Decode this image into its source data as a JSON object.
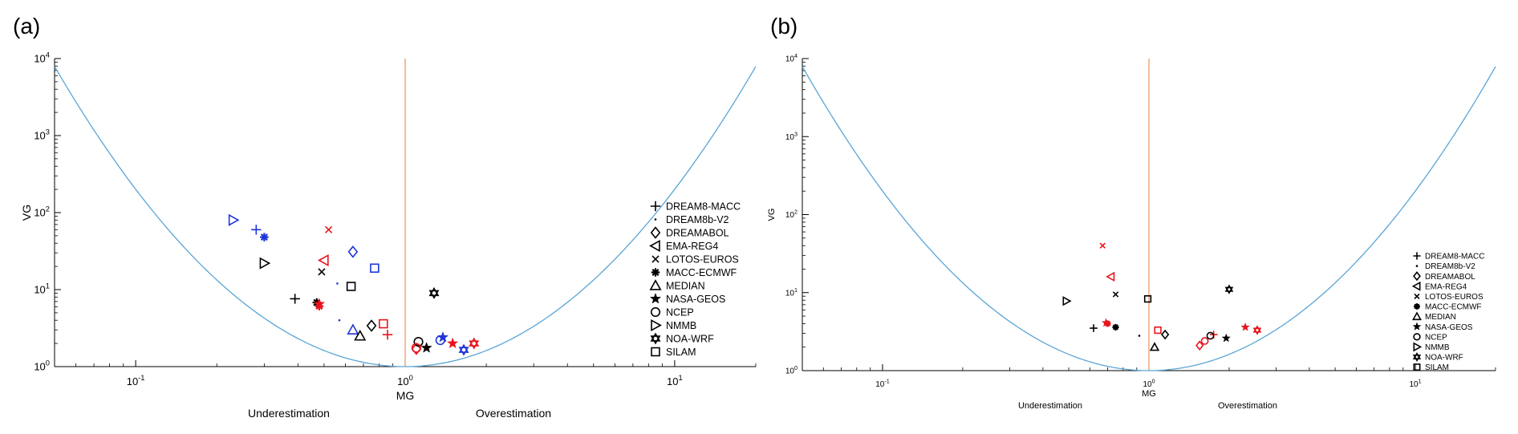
{
  "chart_data": [
    {
      "panel": "(a)",
      "type": "scatter",
      "xlabel": "MG",
      "ylabel": "VG",
      "xscale": "log",
      "yscale": "log",
      "xlim": [
        0.05,
        20
      ],
      "ylim": [
        1,
        10000
      ],
      "x_ticks": [
        "10^-1",
        "10^0",
        "10^1"
      ],
      "y_ticks": [
        "10^0",
        "10^1",
        "10^2",
        "10^3",
        "10^4"
      ],
      "region_labels": [
        "Underestimation",
        "Overestimation"
      ],
      "reference_line_x": 1,
      "curve": "VG = exp((ln MG)^2)",
      "legend_position": "right",
      "legend": [
        "DREAM8-MACC",
        "DREAM8b-V2",
        "DREAMABOL",
        "EMA-REG4",
        "LOTOS-EUROS",
        "MACC-ECMWF",
        "MEDIAN",
        "NASA-GEOS",
        "NCEP",
        "NMMB",
        "NOA-WRF",
        "SILAM"
      ],
      "series_colors": {
        "black": "#000000",
        "red": "#e8141c",
        "blue": "#1f35d6"
      },
      "points": [
        {
          "model": "DREAM8-MACC",
          "color": "blue",
          "x": 0.28,
          "y": 60
        },
        {
          "model": "DREAM8-MACC",
          "color": "black",
          "x": 0.39,
          "y": 7.6
        },
        {
          "model": "DREAM8-MACC",
          "color": "red",
          "x": 0.86,
          "y": 2.6
        },
        {
          "model": "DREAMABOL",
          "color": "blue",
          "x": 0.64,
          "y": 31
        },
        {
          "model": "DREAMABOL",
          "color": "black",
          "x": 0.75,
          "y": 3.4
        },
        {
          "model": "DREAMABOL",
          "color": "red",
          "x": 1.1,
          "y": 1.7
        },
        {
          "model": "EMA-REG4",
          "color": "red",
          "x": 0.5,
          "y": 24
        },
        {
          "model": "LOTOS-EUROS",
          "color": "red",
          "x": 0.52,
          "y": 60
        },
        {
          "model": "LOTOS-EUROS",
          "color": "black",
          "x": 0.49,
          "y": 17
        },
        {
          "model": "MACC-ECMWF",
          "color": "blue",
          "x": 0.3,
          "y": 48
        },
        {
          "model": "MACC-ECMWF",
          "color": "black",
          "x": 0.47,
          "y": 6.8
        },
        {
          "model": "MACC-ECMWF",
          "color": "red",
          "x": 0.48,
          "y": 6.1
        },
        {
          "model": "MEDIAN",
          "color": "blue",
          "x": 0.64,
          "y": 3.0
        },
        {
          "model": "MEDIAN",
          "color": "black",
          "x": 0.68,
          "y": 2.5
        },
        {
          "model": "NASA-GEOS",
          "color": "black",
          "x": 1.2,
          "y": 1.75
        },
        {
          "model": "NASA-GEOS",
          "color": "blue",
          "x": 1.38,
          "y": 2.4
        },
        {
          "model": "NASA-GEOS",
          "color": "red",
          "x": 1.5,
          "y": 2.0
        },
        {
          "model": "NASA-GEOS",
          "color": "red",
          "x": 0.48,
          "y": 6.5
        },
        {
          "model": "NCEP",
          "color": "black",
          "x": 1.12,
          "y": 2.1
        },
        {
          "model": "NCEP",
          "color": "blue",
          "x": 1.35,
          "y": 2.2
        },
        {
          "model": "NCEP",
          "color": "red",
          "x": 1.1,
          "y": 1.75
        },
        {
          "model": "NMMB",
          "color": "blue",
          "x": 0.23,
          "y": 80
        },
        {
          "model": "NMMB",
          "color": "black",
          "x": 0.3,
          "y": 22
        },
        {
          "model": "NOA-WRF",
          "color": "black",
          "x": 1.28,
          "y": 9.0
        },
        {
          "model": "NOA-WRF",
          "color": "blue",
          "x": 1.65,
          "y": 1.65
        },
        {
          "model": "NOA-WRF",
          "color": "red",
          "x": 1.8,
          "y": 2.0
        },
        {
          "model": "SILAM",
          "color": "blue",
          "x": 0.77,
          "y": 19
        },
        {
          "model": "SILAM",
          "color": "black",
          "x": 0.63,
          "y": 11
        },
        {
          "model": "SILAM",
          "color": "red",
          "x": 0.83,
          "y": 3.6
        },
        {
          "model": "DREAM8b-V2",
          "color": "blue",
          "x": 0.56,
          "y": 12
        },
        {
          "model": "DREAM8b-V2",
          "color": "blue",
          "x": 0.57,
          "y": 4.0
        }
      ]
    },
    {
      "panel": "(b)",
      "type": "scatter",
      "xlabel": "MG",
      "ylabel": "VG",
      "xscale": "log",
      "yscale": "log",
      "xlim": [
        0.05,
        20
      ],
      "ylim": [
        1,
        10000
      ],
      "x_ticks": [
        "10^-1",
        "10^0",
        "10^1"
      ],
      "y_ticks": [
        "10^0",
        "10^1",
        "10^2",
        "10^3",
        "10^4"
      ],
      "region_labels": [
        "Underestimation",
        "Overestimation"
      ],
      "reference_line_x": 1,
      "curve": "VG = exp((ln MG)^2)",
      "legend_position": "right",
      "legend": [
        "DREAM8-MACC",
        "DREAM8b-V2",
        "DREAMABOL",
        "EMA-REG4",
        "LOTOS-EUROS",
        "MACC-ECMWF",
        "MEDIAN",
        "NASA-GEOS",
        "NCEP",
        "NMMB",
        "NOA-WRF",
        "SILAM"
      ],
      "series_colors": {
        "black": "#000000",
        "red": "#e8141c"
      },
      "points": [
        {
          "model": "DREAM8-MACC",
          "color": "black",
          "x": 0.62,
          "y": 3.5
        },
        {
          "model": "DREAM8-MACC",
          "color": "red",
          "x": 1.75,
          "y": 2.9
        },
        {
          "model": "DREAM8b-V2",
          "color": "black",
          "x": 0.92,
          "y": 2.8
        },
        {
          "model": "DREAMABOL",
          "color": "black",
          "x": 1.15,
          "y": 2.9
        },
        {
          "model": "DREAMABOL",
          "color": "red",
          "x": 1.55,
          "y": 2.1
        },
        {
          "model": "EMA-REG4",
          "color": "red",
          "x": 0.72,
          "y": 16
        },
        {
          "model": "LOTOS-EUROS",
          "color": "red",
          "x": 0.67,
          "y": 40
        },
        {
          "model": "LOTOS-EUROS",
          "color": "black",
          "x": 0.75,
          "y": 9.5
        },
        {
          "model": "MACC-ECMWF",
          "color": "black",
          "x": 0.75,
          "y": 3.6
        },
        {
          "model": "MACC-ECMWF",
          "color": "red",
          "x": 0.7,
          "y": 4.0
        },
        {
          "model": "MEDIAN",
          "color": "black",
          "x": 1.05,
          "y": 2.0
        },
        {
          "model": "NASA-GEOS",
          "color": "black",
          "x": 1.95,
          "y": 2.6
        },
        {
          "model": "NASA-GEOS",
          "color": "red",
          "x": 2.3,
          "y": 3.6
        },
        {
          "model": "NASA-GEOS",
          "color": "red",
          "x": 0.69,
          "y": 4.1
        },
        {
          "model": "NCEP",
          "color": "black",
          "x": 1.7,
          "y": 2.8
        },
        {
          "model": "NCEP",
          "color": "red",
          "x": 1.62,
          "y": 2.4
        },
        {
          "model": "NMMB",
          "color": "black",
          "x": 0.49,
          "y": 7.8
        },
        {
          "model": "NOA-WRF",
          "color": "black",
          "x": 2.0,
          "y": 11
        },
        {
          "model": "NOA-WRF",
          "color": "red",
          "x": 2.55,
          "y": 3.3
        },
        {
          "model": "SILAM",
          "color": "black",
          "x": 0.99,
          "y": 8.3
        },
        {
          "model": "SILAM",
          "color": "red",
          "x": 1.08,
          "y": 3.3
        }
      ]
    }
  ]
}
